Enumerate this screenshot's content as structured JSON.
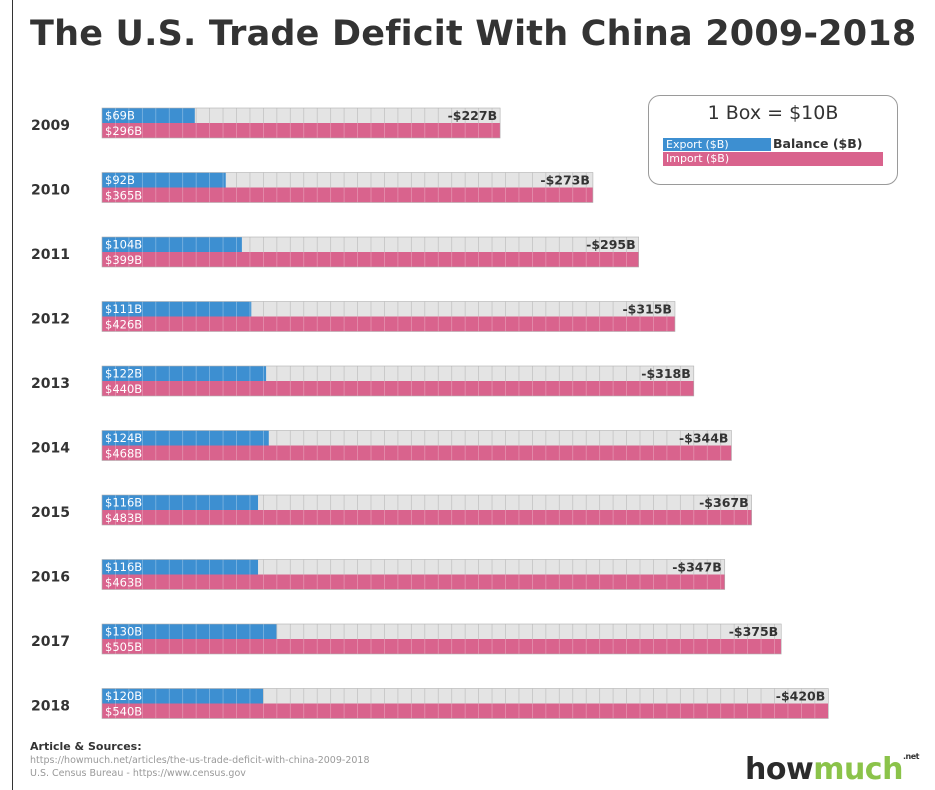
{
  "title": "The U.S. Trade Deficit With China 2009-2018",
  "legend": {
    "scale": "1 Box = $10B",
    "export_label": "Export ($B)",
    "balance_label": "Balance ($B)",
    "import_label": "Import ($B)"
  },
  "colors": {
    "export": "#3d8fd1",
    "import": "#d9638d",
    "balance_track": "#e4e4e4",
    "grid": "#c4c4c4",
    "text": "#333333"
  },
  "sources": {
    "heading": "Article & Sources:",
    "lines": [
      "https://howmuch.net/articles/the-us-trade-deficit-with-china-2009-2018",
      "U.S. Census Bureau - https://www.census.gov"
    ]
  },
  "brand": {
    "part1": "how",
    "part2": "much",
    "suffix": ".net"
  },
  "chart_data": {
    "type": "bar",
    "title": "The U.S. Trade Deficit With China 2009-2018",
    "categories": [
      "2009",
      "2010",
      "2011",
      "2012",
      "2013",
      "2014",
      "2015",
      "2016",
      "2017",
      "2018"
    ],
    "series": [
      {
        "name": "Export ($B)",
        "values": [
          69,
          92,
          104,
          111,
          122,
          124,
          116,
          116,
          130,
          120
        ],
        "labels": [
          "$69B",
          "$92B",
          "$104B",
          "$111B",
          "$122B",
          "$124B",
          "$116B",
          "$116B",
          "$130B",
          "$120B"
        ]
      },
      {
        "name": "Import ($B)",
        "values": [
          296,
          365,
          399,
          426,
          440,
          468,
          483,
          463,
          505,
          540
        ],
        "labels": [
          "$296B",
          "$365B",
          "$399B",
          "$426B",
          "$440B",
          "$468B",
          "$483B",
          "$463B",
          "$505B",
          "$540B"
        ]
      },
      {
        "name": "Balance ($B)",
        "values": [
          -227,
          -273,
          -295,
          -315,
          -318,
          -344,
          -367,
          -347,
          -375,
          -420
        ],
        "labels": [
          "-$227B",
          "-$273B",
          "-$295B",
          "-$315B",
          "-$318B",
          "-$344B",
          "-$367B",
          "-$347B",
          "-$375B",
          "-$420B"
        ]
      }
    ],
    "unit_per_box": 10,
    "grid": true,
    "legend_position": "top-right"
  }
}
